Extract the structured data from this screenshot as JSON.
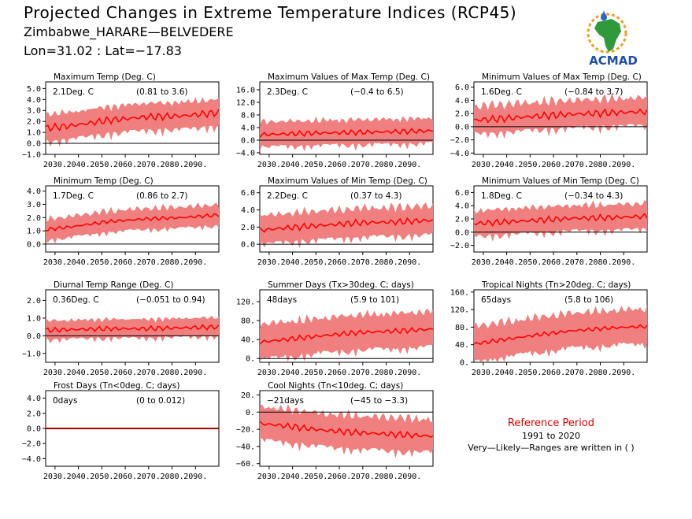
{
  "header": {
    "title": "Projected Changes in Extreme Temperature Indices (RCP45)",
    "station": "Zimbabwe_HARARE—BELVEDERE",
    "coords": "Lon=31.02 : Lat=−17.83"
  },
  "logo": {
    "text": "ACMAD",
    "icon": "africa-map-logo"
  },
  "reference": {
    "title": "Reference Period",
    "years": "1991 to 2020",
    "note": "Very—Likely—Ranges are written in ( )"
  },
  "colors": {
    "band": "#f08080",
    "line": "#ff0000",
    "zero": "#000000",
    "frost": "#b00000"
  },
  "chart_data": [
    {
      "type": "area",
      "title": "Maximum Temp (Deg. C)",
      "value_label": "2.1Deg. C",
      "range_label": "(0.81 to 3.6)",
      "xticks": [
        "2030.",
        "2040.",
        "2050.",
        "2060.",
        "2070.",
        "2080.",
        "2090."
      ],
      "yticks": [
        "−1.0",
        "0.0",
        "1.0",
        "2.0",
        "3.0",
        "4.0",
        "5.0"
      ],
      "ylim": [
        -1.0,
        5.6
      ],
      "x_range": [
        2026,
        2100
      ],
      "series": [
        {
          "values": [
            1.3,
            1.6,
            2.1,
            2.4,
            2.5,
            2.8
          ]
        }
      ],
      "band_width": 1.4,
      "noise": 0.35
    },
    {
      "type": "area",
      "title": "Maximum Values of Max Temp (Deg. C)",
      "value_label": "2.3Deg. C",
      "range_label": "(−0.4 to 6.5)",
      "xticks": [
        "2030.",
        "2040.",
        "2050.",
        "2060.",
        "2070.",
        "2080.",
        "2090."
      ],
      "yticks": [
        "−4.0",
        "0.0",
        "4.0",
        "8.0",
        "12.0",
        "16.0"
      ],
      "ylim": [
        -4.5,
        18.5
      ],
      "x_range": [
        2026,
        2100
      ],
      "series": [
        {
          "values": [
            1.6,
            2.0,
            2.3,
            2.5,
            2.7,
            3.0
          ]
        }
      ],
      "band_width": 4.5,
      "noise": 0.9
    },
    {
      "type": "area",
      "title": "Minimum Values of Max Temp (Deg. C)",
      "value_label": "1.6Deg. C",
      "range_label": "(−0.84 to 3.7)",
      "xticks": [
        "2030.",
        "2040.",
        "2050.",
        "2060.",
        "2070.",
        "2080.",
        "2090."
      ],
      "yticks": [
        "−4.0",
        "−2.0",
        "0.0",
        "2.0",
        "4.0",
        "6.0"
      ],
      "ylim": [
        -4.2,
        6.8
      ],
      "x_range": [
        2026,
        2100
      ],
      "series": [
        {
          "values": [
            0.9,
            1.2,
            1.6,
            1.9,
            2.1,
            2.3
          ]
        }
      ],
      "band_width": 2.4,
      "noise": 0.6
    },
    {
      "type": "area",
      "title": "Minimum Temp (Deg. C)",
      "value_label": "1.7Deg. C",
      "range_label": "(0.86 to 2.7)",
      "xticks": [
        "2030.",
        "2040.",
        "2050.",
        "2060.",
        "2070.",
        "2080.",
        "2090."
      ],
      "yticks": [
        "0.0",
        "1.0",
        "2.0",
        "3.0",
        "4.0"
      ],
      "ylim": [
        -0.6,
        4.4
      ],
      "x_range": [
        2026,
        2100
      ],
      "series": [
        {
          "values": [
            1.0,
            1.3,
            1.7,
            1.9,
            2.0,
            2.2
          ]
        }
      ],
      "band_width": 0.9,
      "noise": 0.15
    },
    {
      "type": "area",
      "title": "Maximum Values of Min Temp (Deg. C)",
      "value_label": "2.2Deg. C",
      "range_label": "(0.37 to 4.3)",
      "xticks": [
        "2030.",
        "2040.",
        "2050.",
        "2060.",
        "2070.",
        "2080.",
        "2090."
      ],
      "yticks": [
        "0.0",
        "2.0",
        "4.0",
        "6.0"
      ],
      "ylim": [
        -0.9,
        6.8
      ],
      "x_range": [
        2026,
        2100
      ],
      "series": [
        {
          "values": [
            1.5,
            1.9,
            2.2,
            2.5,
            2.6,
            2.8
          ]
        }
      ],
      "band_width": 1.9,
      "noise": 0.4
    },
    {
      "type": "area",
      "title": "Minimum Values of Min Temp (Deg. C)",
      "value_label": "1.8Deg. C",
      "range_label": "(−0.34 to 4.3)",
      "xticks": [
        "2030.",
        "2040.",
        "2050.",
        "2060.",
        "2070.",
        "2080.",
        "2090."
      ],
      "yticks": [
        "−2.0",
        "0.0",
        "2.0",
        "4.0",
        "6.0"
      ],
      "ylim": [
        -3.0,
        7.0
      ],
      "x_range": [
        2026,
        2100
      ],
      "series": [
        {
          "values": [
            1.2,
            1.5,
            1.8,
            2.1,
            2.2,
            2.4
          ]
        }
      ],
      "band_width": 2.2,
      "noise": 0.5
    },
    {
      "type": "area",
      "title": "Diurnal Temp Range (Deg. C)",
      "value_label": "0.36Deg. C",
      "range_label": "(−0.051 to 0.94)",
      "xticks": [
        "2030.",
        "2040.",
        "2050.",
        "2060.",
        "2070.",
        "2080.",
        "2090."
      ],
      "yticks": [
        "−1.0",
        "0.0",
        "1.0",
        "2.0"
      ],
      "ylim": [
        -1.5,
        2.6
      ],
      "x_range": [
        2026,
        2100
      ],
      "series": [
        {
          "values": [
            0.3,
            0.35,
            0.4,
            0.4,
            0.45,
            0.5
          ]
        }
      ],
      "band_width": 0.6,
      "noise": 0.15
    },
    {
      "type": "area",
      "title": "Summer Days (Tx>30deg. C; days)",
      "value_label": "48days",
      "range_label": "(5.9 to 101)",
      "xticks": [
        "2030.",
        "2040.",
        "2050.",
        "2060.",
        "2070.",
        "2080.",
        "2090."
      ],
      "yticks": [
        "0.",
        "40.",
        "80.",
        "120."
      ],
      "ylim": [
        -8,
        145
      ],
      "x_range": [
        2026,
        2100
      ],
      "series": [
        {
          "values": [
            32,
            40,
            48,
            55,
            58,
            62
          ]
        }
      ],
      "band_width": 42,
      "noise": 6
    },
    {
      "type": "area",
      "title": "Tropical Nights (Tn>20deg. C; days)",
      "value_label": "65days",
      "range_label": "(5.8 to 106)",
      "xticks": [
        "2030.",
        "2040.",
        "2050.",
        "2060.",
        "2070.",
        "2080.",
        "2090."
      ],
      "yticks": [
        "0.",
        "40.",
        "80.",
        "120.",
        "160."
      ],
      "ylim": [
        0,
        165
      ],
      "x_range": [
        2026,
        2100
      ],
      "series": [
        {
          "values": [
            38,
            50,
            62,
            72,
            78,
            82
          ]
        }
      ],
      "band_width": 45,
      "noise": 5
    },
    {
      "type": "area",
      "title": "Frost Days (Tn<0deg. C; days)",
      "value_label": "0days",
      "range_label": "(0 to 0.012)",
      "xticks": [
        "2030.",
        "2040.",
        "2050.",
        "2060.",
        "2070.",
        "2080.",
        "2090."
      ],
      "yticks": [
        "−4.0",
        "−2.0",
        "0.0",
        "2.0",
        "4.0"
      ],
      "ylim": [
        -5.0,
        5.0
      ],
      "x_range": [
        2026,
        2100
      ],
      "series": [
        {
          "values": [
            0,
            0,
            0,
            0,
            0,
            0
          ]
        }
      ],
      "band_width": 0,
      "noise": 0
    },
    {
      "type": "area",
      "title": "Cool Nights (Tn<10deg. C; days)",
      "value_label": "−21days",
      "range_label": "(−45 to −3.3)",
      "xticks": [
        "2030.",
        "2040.",
        "2050.",
        "2060.",
        "2070.",
        "2080.",
        "2090."
      ],
      "yticks": [
        "−60.",
        "−40.",
        "−20.",
        "0.",
        "20."
      ],
      "ylim": [
        -63,
        25
      ],
      "x_range": [
        2026,
        2100
      ],
      "series": [
        {
          "values": [
            -12,
            -16,
            -21,
            -24,
            -26,
            -28
          ]
        }
      ],
      "band_width": 22,
      "noise": 4
    }
  ]
}
